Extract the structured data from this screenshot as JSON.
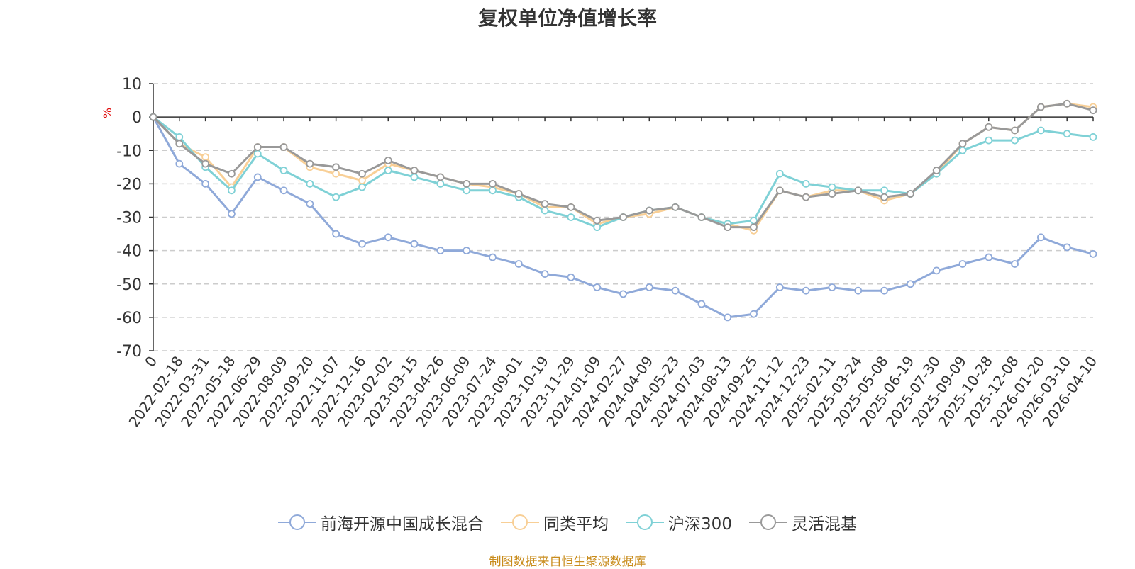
{
  "chart_data": {
    "type": "line",
    "title": "复权单位净值增长率",
    "ylabel": "%",
    "ylim": [
      -70,
      10
    ],
    "yticks": [
      10,
      0,
      -10,
      -20,
      -30,
      -40,
      -50,
      -60,
      -70
    ],
    "grid": true,
    "legend_position": "bottom-center",
    "categories": [
      "0",
      "2022-02-18",
      "2022-03-31",
      "2022-05-18",
      "2022-06-29",
      "2022-08-09",
      "2022-09-20",
      "2022-11-07",
      "2022-12-16",
      "2023-02-02",
      "2023-03-15",
      "2023-04-26",
      "2023-06-09",
      "2023-07-24",
      "2023-09-01",
      "2023-10-19",
      "2023-11-29",
      "2024-01-09",
      "2024-02-27",
      "2024-04-09",
      "2024-05-23",
      "2024-07-03",
      "2024-08-13",
      "2024-09-25",
      "2024-11-12",
      "2024-12-23",
      "2025-02-11",
      "2025-03-24",
      "2025-05-08",
      "2025-06-19",
      "2025-07-30",
      "2025-09-09",
      "2025-10-28",
      "2025-12-08",
      "2026-01-20",
      "2026-03-10",
      "2026-04-10"
    ],
    "series": [
      {
        "name": "前海开源中国成长混合",
        "color": "#8fa9d9",
        "values": [
          0,
          -14,
          -20,
          -29,
          -18,
          -22,
          -26,
          -35,
          -38,
          -36,
          -38,
          -40,
          -40,
          -42,
          -44,
          -47,
          -48,
          -51,
          -53,
          -51,
          -52,
          -56,
          -60,
          -59,
          -51,
          -52,
          -51,
          -52,
          -52,
          -50,
          -46,
          -44,
          -42,
          -44,
          -36,
          -39,
          -41
        ]
      },
      {
        "name": "同类平均",
        "color": "#f8cf96",
        "values": [
          0,
          -8,
          -12,
          -21,
          -9,
          -9,
          -15,
          -17,
          -19,
          -14,
          -16,
          -18,
          -20,
          -21,
          -23,
          -27,
          -27,
          -32,
          -30,
          -29,
          -27,
          -30,
          -32,
          -34,
          -22,
          -24,
          -22,
          -22,
          -25,
          -23,
          -17,
          -8,
          -3,
          -4,
          3,
          4,
          3
        ]
      },
      {
        "name": "沪深300",
        "color": "#7fd1d6",
        "values": [
          0,
          -6,
          -15,
          -22,
          -11,
          -16,
          -20,
          -24,
          -21,
          -16,
          -18,
          -20,
          -22,
          -22,
          -24,
          -28,
          -30,
          -33,
          -30,
          -28,
          -27,
          -30,
          -32,
          -31,
          -17,
          -20,
          -21,
          -22,
          -22,
          -23,
          -17,
          -10,
          -7,
          -7,
          -4,
          -5,
          -6
        ]
      },
      {
        "name": "灵活混基",
        "color": "#999999",
        "values": [
          0,
          -8,
          -14,
          -17,
          -9,
          -9,
          -14,
          -15,
          -17,
          -13,
          -16,
          -18,
          -20,
          -20,
          -23,
          -26,
          -27,
          -31,
          -30,
          -28,
          -27,
          -30,
          -33,
          -33,
          -22,
          -24,
          -23,
          -22,
          -24,
          -23,
          -16,
          -8,
          -3,
          -4,
          3,
          4,
          2
        ]
      }
    ]
  },
  "legend": {
    "items": [
      "前海开源中国成长混合",
      "同类平均",
      "沪深300",
      "灵活混基"
    ]
  },
  "source_note": "制图数据来自恒生聚源数据库"
}
